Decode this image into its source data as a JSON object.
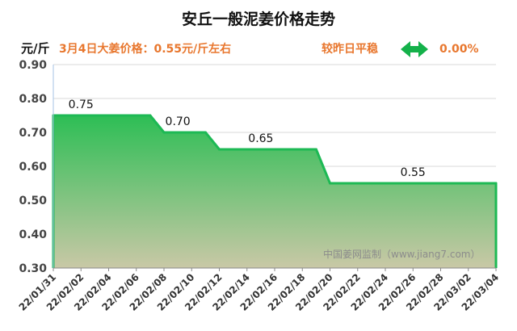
{
  "header": {
    "title": "安丘一般泥姜价格走势",
    "unit": "元/斤",
    "price_note": "3月4日大姜价格：0.55元/斤左右",
    "compare_label": "较昨日平稳",
    "change_value": "0.00%",
    "arrow_icon": "double-arrow-icon"
  },
  "watermark": "中国姜网监制（www.jiang7.com）",
  "colors": {
    "accent_orange": "#e8772e",
    "arrow_green": "#14b14a",
    "line_green": "#1db954",
    "fill_top": "#2dbe55",
    "fill_bottom": "#c9c8a6"
  },
  "chart_data": {
    "type": "area",
    "title": "安丘一般泥姜价格走势",
    "ylabel": "元/斤",
    "ylim": [
      0.3,
      0.9
    ],
    "yticks": [
      "0.30",
      "0.40",
      "0.50",
      "0.60",
      "0.70",
      "0.80",
      "0.90"
    ],
    "x_tick_labels": [
      "22/01/31",
      "22/02/02",
      "22/02/04",
      "22/02/06",
      "22/02/08",
      "22/02/10",
      "22/02/12",
      "22/02/14",
      "22/02/16",
      "22/02/18",
      "22/02/20",
      "22/02/22",
      "22/02/24",
      "22/02/26",
      "22/02/28",
      "22/03/02",
      "22/03/04"
    ],
    "grid": true,
    "series": [
      {
        "x": [
          "2022-01-31",
          "2022-02-07",
          "2022-02-08",
          "2022-02-11",
          "2022-02-12",
          "2022-02-19",
          "2022-02-20",
          "2022-03-04"
        ],
        "values": [
          0.75,
          0.75,
          0.7,
          0.7,
          0.65,
          0.65,
          0.55,
          0.55
        ]
      }
    ],
    "data_labels": [
      {
        "x": "2022-02-02",
        "value": 0.75,
        "text": "0.75"
      },
      {
        "x": "2022-02-09",
        "value": 0.7,
        "text": "0.70"
      },
      {
        "x": "2022-02-15",
        "value": 0.65,
        "text": "0.65"
      },
      {
        "x": "2022-02-26",
        "value": 0.55,
        "text": "0.55"
      }
    ]
  }
}
